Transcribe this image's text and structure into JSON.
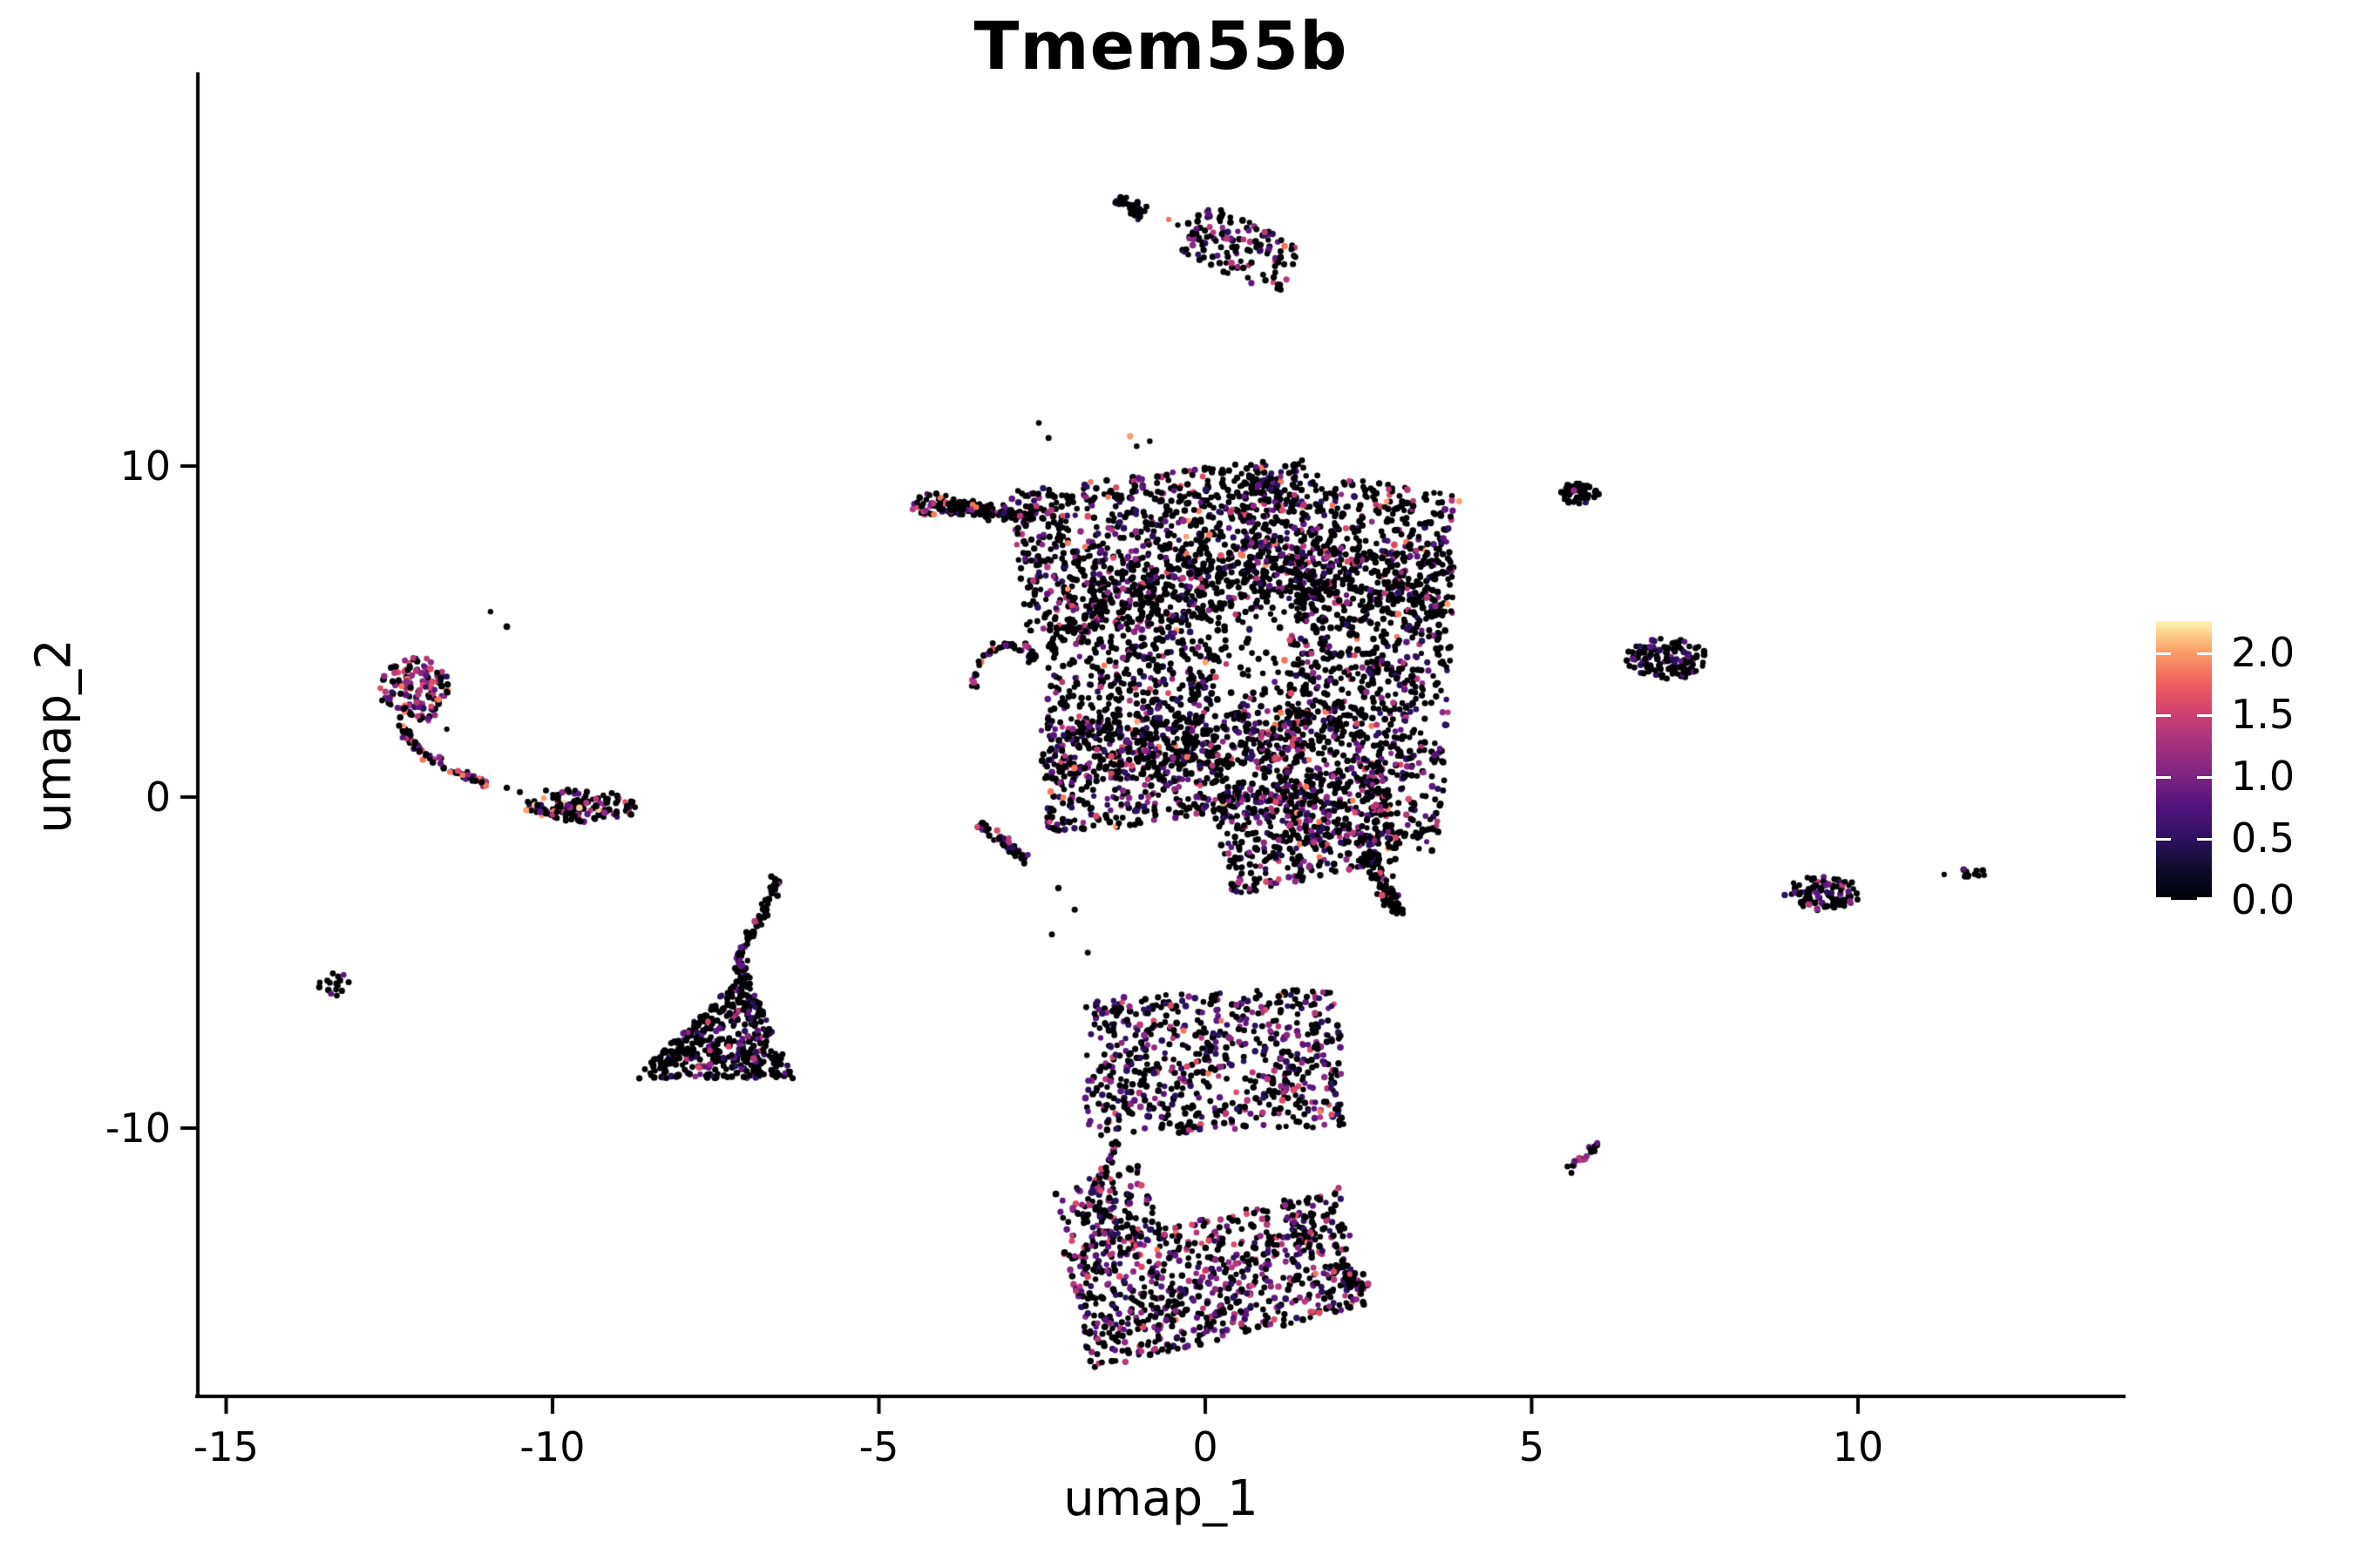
{
  "title": "Tmem55b",
  "axes": {
    "x": {
      "label": "umap_1",
      "ticks": [
        -15,
        -10,
        -5,
        0,
        5,
        10
      ]
    },
    "y": {
      "label": "umap_2",
      "ticks": [
        10,
        0,
        -10
      ]
    }
  },
  "colorbar": {
    "labels": [
      "2.0",
      "1.5",
      "1.0",
      "0.5",
      "0.0"
    ],
    "values": [
      2.0,
      1.5,
      1.0,
      0.5,
      0.0
    ],
    "vmin": 0,
    "vmax": 2.25,
    "tick_color": "#ffffff",
    "stops": [
      [
        0,
        "#000004"
      ],
      [
        11,
        "#0e0b2b"
      ],
      [
        22,
        "#2d1161"
      ],
      [
        33,
        "#51127c"
      ],
      [
        44,
        "#7b2382"
      ],
      [
        56,
        "#a5317e"
      ],
      [
        67,
        "#cf4070"
      ],
      [
        78,
        "#f0605d"
      ],
      [
        89,
        "#fb9d68"
      ],
      [
        96,
        "#fdd38e"
      ],
      [
        100,
        "#fcf4b5"
      ]
    ]
  },
  "chart_data": {
    "type": "scatter",
    "title": "Tmem55b",
    "xlabel": "umap_1",
    "ylabel": "umap_2",
    "xlim": [
      -15.4,
      14.1
    ],
    "ylim": [
      -18.2,
      21.8
    ],
    "grid": false,
    "legend_position": "right",
    "color_scale": {
      "name": "magma",
      "domain": [
        0,
        2.25
      ],
      "legend_ticks": [
        0,
        0.5,
        1.0,
        1.5,
        2.0
      ]
    },
    "palette": [
      "#000004",
      "#2a115c",
      "#5c177f",
      "#8c2981",
      "#b73779",
      "#de4968",
      "#f8765c",
      "#fe9f6d",
      "#fecf92"
    ],
    "mixes": {
      "black": [
        900,
        60,
        25,
        10,
        5,
        0,
        0,
        0,
        0
      ],
      "main": [
        720,
        80,
        70,
        50,
        40,
        20,
        12,
        6,
        2
      ],
      "main2": [
        640,
        100,
        90,
        70,
        55,
        28,
        12,
        4,
        1
      ],
      "fill": [
        820,
        60,
        50,
        30,
        25,
        10,
        5,
        0,
        0
      ],
      "cl1": [
        700,
        60,
        70,
        60,
        45,
        25,
        15,
        12,
        0
      ],
      "tip": [
        550,
        80,
        100,
        90,
        90,
        60,
        28,
        2,
        0
      ],
      "arm": [
        780,
        60,
        60,
        40,
        30,
        18,
        10,
        2,
        0
      ],
      "hook": [
        680,
        70,
        80,
        70,
        55,
        30,
        15,
        0,
        0
      ],
      "tailw": [
        820,
        70,
        60,
        30,
        15,
        5,
        0,
        0,
        0
      ],
      "head": [
        350,
        50,
        90,
        150,
        160,
        110,
        60,
        28,
        2
      ],
      "ctail": [
        600,
        60,
        80,
        80,
        80,
        60,
        30,
        10,
        0
      ],
      "lefte": [
        730,
        60,
        60,
        50,
        40,
        25,
        20,
        10,
        5
      ],
      "rmid": [
        740,
        90,
        80,
        55,
        25,
        8,
        2,
        0,
        0
      ],
      "rlow": [
        700,
        90,
        90,
        70,
        30,
        10,
        8,
        2,
        0
      ],
      "tleft": [
        700,
        100,
        120,
        40,
        20,
        0,
        20,
        0,
        0
      ],
      "funnel": [
        770,
        90,
        85,
        30,
        18,
        5,
        2,
        0,
        0
      ],
      "bup": [
        620,
        120,
        100,
        80,
        50,
        22,
        6,
        2,
        0
      ],
      "strand": [
        560,
        80,
        90,
        110,
        90,
        40,
        10,
        0,
        0
      ],
      "blow": [
        550,
        105,
        120,
        100,
        80,
        38,
        6,
        1,
        0
      ],
      "blow2": [
        650,
        90,
        90,
        80,
        50,
        20,
        5,
        0,
        0
      ],
      "bstreak": [
        650,
        60,
        100,
        80,
        100,
        10,
        0,
        0,
        0
      ]
    },
    "clusters": [
      {
        "name": "top-streak",
        "type": "band",
        "p": [
          -1.35,
          18.1,
          -0.95,
          17.62
        ],
        "w": 13,
        "n": 42,
        "seed": 1,
        "wts": "black"
      },
      {
        "name": "top-trail",
        "type": "dots",
        "pts": [
          [
            -0.56,
            17.45,
            6
          ],
          [
            -0.42,
            17.28,
            0
          ],
          [
            -0.26,
            17.33,
            0
          ],
          [
            -0.08,
            17.2,
            0
          ]
        ]
      },
      {
        "name": "top-clump",
        "type": "rectblob",
        "c": [
          0.55,
          16.55
        ],
        "hw": 62,
        "hh": 32,
        "rot": 24,
        "n": 135,
        "seed": 2,
        "wts": "cl1"
      },
      {
        "name": "blob-arm-tip",
        "type": "ellipse",
        "c": [
          -4.2,
          8.85
        ],
        "r": [
          0.32,
          0.35
        ],
        "n": 40,
        "seed": 3,
        "wts": "tip"
      },
      {
        "name": "blob-arm",
        "type": "band",
        "p": [
          -3.95,
          8.8,
          -2.6,
          8.5
        ],
        "w": 15,
        "n": 120,
        "seed": 4,
        "wts": "arm"
      },
      {
        "name": "blob-top-mass",
        "type": "rectblob",
        "c": [
          -0.6,
          7.55
        ],
        "hw": 170,
        "hh": 85,
        "rot": -7,
        "n": 870,
        "seed": 5,
        "wts": "main"
      },
      {
        "name": "blob-top-right",
        "type": "rectblob",
        "c": [
          2.2,
          7.7
        ],
        "hw": 120,
        "hh": 72,
        "rot": 8,
        "n": 520,
        "seed": 6,
        "wts": "main"
      },
      {
        "name": "blob-right-mass",
        "type": "rectblob",
        "c": [
          2.5,
          3.0
        ],
        "hw": 92,
        "hh": 172,
        "rot": 3,
        "n": 950,
        "seed": 7,
        "wts": "main"
      },
      {
        "name": "blob-mid-left",
        "type": "rectblob",
        "c": [
          -1.15,
          3.9
        ],
        "hw": 95,
        "hh": 128,
        "rot": 0,
        "n": 560,
        "seed": 8,
        "wts": "main"
      },
      {
        "name": "blob-fill",
        "type": "ellipse",
        "c": [
          0.45,
          4.4
        ],
        "r": [
          2.7,
          3.5
        ],
        "n": 400,
        "seed": 9,
        "wts": "fill"
      },
      {
        "name": "blob-lower-left",
        "type": "rectblob",
        "c": [
          -0.5,
          0.85
        ],
        "hw": 148,
        "hh": 62,
        "rot": -4,
        "n": 680,
        "seed": 10,
        "wts": "main2"
      },
      {
        "name": "blob-bottom-bulge",
        "type": "rectblob",
        "c": [
          1.55,
          -0.95
        ],
        "hw": 100,
        "hh": 58,
        "rot": -12,
        "n": 400,
        "seed": 11,
        "wts": "main2"
      },
      {
        "name": "blob-tail",
        "type": "curve",
        "pts": [
          [
            2.45,
            -1.7
          ],
          [
            2.75,
            -2.7
          ],
          [
            2.95,
            -3.6
          ]
        ],
        "w": 17,
        "n": 75,
        "seed": 12,
        "wts": "tailw"
      },
      {
        "name": "blob-hook",
        "type": "curve",
        "pts": [
          [
            -3.55,
            3.3
          ],
          [
            -3.35,
            4.3
          ],
          [
            -2.95,
            4.65
          ],
          [
            -2.6,
            4.2
          ]
        ],
        "w": 10,
        "n": 48,
        "seed": 13,
        "wts": "hook"
      },
      {
        "name": "below-arm-streak",
        "type": "band",
        "p": [
          -3.45,
          -0.8,
          -2.7,
          -1.95
        ],
        "w": 11,
        "n": 42,
        "seed": 14,
        "wts": "hook"
      },
      {
        "name": "blob-west-dots",
        "type": "dots",
        "pts": [
          [
            -1.5,
            -0.05,
            2
          ],
          [
            -2.0,
            -0.7,
            0
          ],
          [
            -2.5,
            1.1,
            0
          ],
          [
            -2.25,
            -2.75,
            0
          ],
          [
            -2.0,
            -3.4,
            0
          ],
          [
            -2.35,
            -4.15,
            0
          ],
          [
            -1.8,
            -4.7,
            0
          ],
          [
            -2.55,
            11.3,
            0
          ],
          [
            -2.4,
            10.85,
            0
          ],
          [
            -1.15,
            10.9,
            7
          ],
          [
            -1.05,
            10.6,
            0
          ],
          [
            -0.85,
            10.75,
            0
          ]
        ]
      },
      {
        "name": "comma-head",
        "type": "ellipse",
        "c": [
          -12.1,
          3.25
        ],
        "r": [
          0.52,
          0.95
        ],
        "n": 145,
        "seed": 15,
        "wts": "head"
      },
      {
        "name": "comma-tail",
        "type": "curve",
        "pts": [
          [
            -12.35,
            2.25
          ],
          [
            -12.1,
            1.45
          ],
          [
            -11.55,
            0.8
          ],
          [
            -11.0,
            0.42
          ]
        ],
        "w": 10,
        "n": 78,
        "seed": 16,
        "wts": "ctail"
      },
      {
        "name": "comma-dots",
        "type": "dots",
        "pts": [
          [
            -11.62,
            2.05,
            0
          ],
          [
            -10.95,
            5.6,
            0
          ],
          [
            -10.7,
            5.15,
            0
          ],
          [
            -10.7,
            0.28,
            0
          ],
          [
            -10.5,
            0.15,
            0
          ],
          [
            -10.28,
            -0.12,
            0
          ],
          [
            -10.1,
            0.2,
            0
          ]
        ]
      },
      {
        "name": "left-ellipse",
        "type": "ellipse",
        "c": [
          -9.55,
          -0.3
        ],
        "r": [
          0.82,
          0.52
        ],
        "n": 135,
        "seed": 17,
        "wts": "lefte"
      },
      {
        "name": "top-right-small",
        "type": "ellipse",
        "c": [
          5.72,
          9.2
        ],
        "r": [
          0.3,
          0.32
        ],
        "n": 48,
        "seed": 18,
        "wts": "black"
      },
      {
        "name": "right-mid",
        "type": "ellipse",
        "c": [
          7.05,
          4.2
        ],
        "r": [
          0.62,
          0.62
        ],
        "n": 118,
        "seed": 19,
        "wts": "rmid"
      },
      {
        "name": "right-low",
        "type": "ellipse",
        "c": [
          9.45,
          -2.9
        ],
        "r": [
          0.56,
          0.5
        ],
        "n": 95,
        "seed": 20,
        "wts": "rlow"
      },
      {
        "name": "tiny-pair",
        "type": "ellipse",
        "c": [
          11.77,
          -2.3
        ],
        "r": [
          0.2,
          0.16
        ],
        "n": 11,
        "seed": 21,
        "wts": "black"
      },
      {
        "name": "tiny-pair-dots",
        "type": "dots",
        "pts": [
          [
            11.32,
            -2.34,
            0
          ],
          [
            11.62,
            -2.18,
            2
          ]
        ]
      },
      {
        "name": "tiny-left",
        "type": "ellipse",
        "c": [
          -13.35,
          -5.7
        ],
        "r": [
          0.26,
          0.42
        ],
        "n": 16,
        "seed": 22,
        "wts": "tleft"
      },
      {
        "name": "funnel-tail",
        "type": "curve",
        "pts": [
          [
            -6.55,
            -2.45
          ],
          [
            -6.8,
            -3.6
          ],
          [
            -7.15,
            -4.7
          ],
          [
            -7.05,
            -5.5
          ]
        ],
        "w": 11,
        "n": 88,
        "seed": 23,
        "wts": "funnel"
      },
      {
        "name": "funnel-body",
        "type": "tri",
        "a": [
          -7.05,
          -5.3
        ],
        "b": [
          -8.75,
          -8.5
        ],
        "c2": [
          -6.3,
          -8.5
        ],
        "n": 430,
        "seed": 24,
        "wts": "funnel"
      },
      {
        "name": "bottom-upper",
        "type": "rectblob",
        "c": [
          0.12,
          -8.0
        ],
        "hw": 148,
        "hh": 80,
        "rot": -2,
        "n": 700,
        "seed": 25,
        "wts": "bup"
      },
      {
        "name": "bottom-strand",
        "type": "curve",
        "pts": [
          [
            -1.35,
            -10.35
          ],
          [
            -1.52,
            -11.3
          ],
          [
            -1.78,
            -12.1
          ],
          [
            -1.55,
            -12.7
          ]
        ],
        "w": 9,
        "n": 40,
        "seed": 26,
        "wts": "strand"
      },
      {
        "name": "bottom-lower",
        "type": "rectblob",
        "c": [
          0.15,
          -14.55
        ],
        "hw": 162,
        "hh": 70,
        "rot": -13,
        "n": 800,
        "seed": 27,
        "wts": "blow"
      },
      {
        "name": "bottom-lower-left",
        "type": "rectblob",
        "c": [
          -1.45,
          -12.7
        ],
        "hw": 52,
        "hh": 50,
        "rot": -20,
        "n": 150,
        "seed": 28,
        "wts": "blow"
      },
      {
        "name": "bottom-tail-right",
        "type": "band",
        "p": [
          1.95,
          -14.1,
          2.45,
          -14.85
        ],
        "w": 16,
        "n": 55,
        "seed": 29,
        "wts": "blow2"
      },
      {
        "name": "bottom-streak",
        "type": "band",
        "p": [
          5.55,
          -11.2,
          6.05,
          -10.5
        ],
        "w": 10,
        "n": 20,
        "seed": 30,
        "wts": "bstreak"
      }
    ]
  }
}
